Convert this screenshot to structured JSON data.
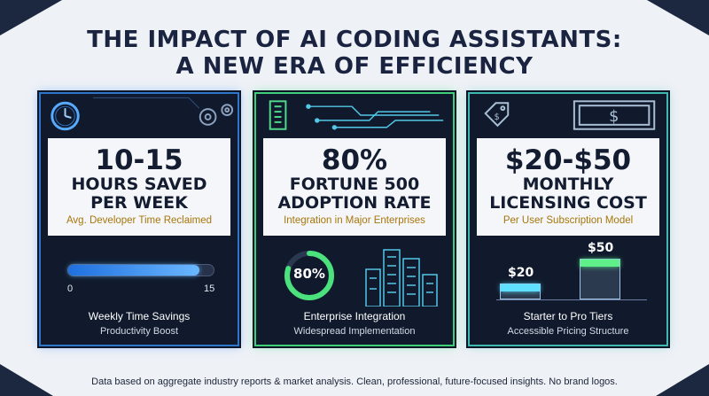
{
  "title": {
    "line1": "THE IMPACT OF AI CODING ASSISTANTS:",
    "line2": "A NEW ERA OF EFFICIENCY"
  },
  "cards": [
    {
      "big": "10-15",
      "sub_line1": "HOURS SAVED",
      "sub_line2": "PER WEEK",
      "caption": "Avg. Developer Time Reclaimed",
      "footer_title": "Weekly Time Savings",
      "footer_sub": "Productivity Boost",
      "icons": [
        "clock-icon",
        "gears-icon"
      ],
      "progress": {
        "min_label": "0",
        "max_label": "15",
        "fill_fraction": 0.9
      }
    },
    {
      "big": "80%",
      "sub_line1": "FORTUNE 500",
      "sub_line2": "ADOPTION RATE",
      "caption": "Integration in Major Enterprises",
      "footer_title": "Enterprise Integration",
      "footer_sub": "Widespread Implementation",
      "icons": [
        "office-building-icon",
        "circuit-lines-icon",
        "skyline-icon"
      ],
      "ring": {
        "label": "80%",
        "fraction": 0.8
      }
    },
    {
      "big": "$20-$50",
      "sub_line1": "MONTHLY",
      "sub_line2": "LICENSING COST",
      "caption": "Per User Subscription Model",
      "footer_title": "Starter to Pro Tiers",
      "footer_sub": "Accessible Pricing Structure",
      "icons": [
        "price-tag-icon",
        "dollar-bill-icon"
      ],
      "prices": [
        {
          "label": "$20",
          "value": 20
        },
        {
          "label": "$50",
          "value": 50
        }
      ]
    }
  ],
  "footnote": "Data based on aggregate industry reports & market analysis. Clean, professional, future-focused insights. No brand logos.",
  "colors": {
    "background": "#eef1f6",
    "card_bg": "#101a2c",
    "blue_glow": "#2f76c8",
    "green_glow": "#3fcf7a",
    "teal_glow": "#3fb8b0",
    "caption_gold": "#a8760a"
  }
}
